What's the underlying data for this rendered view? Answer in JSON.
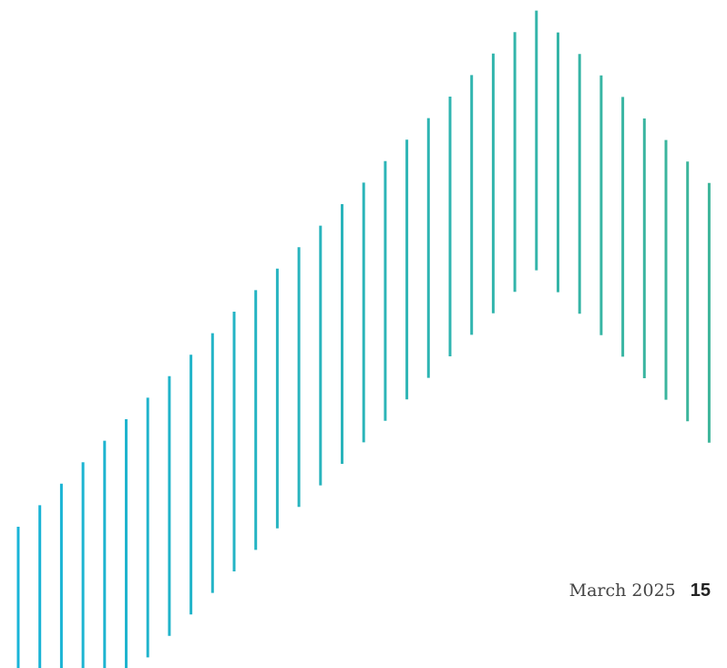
{
  "footer": {
    "date": "March 2025",
    "page_number": "15"
  },
  "decoration": {
    "name": "vertical-line-chevron-pattern",
    "color_start": "#19B4D8",
    "color_end": "#3DB59A"
  }
}
